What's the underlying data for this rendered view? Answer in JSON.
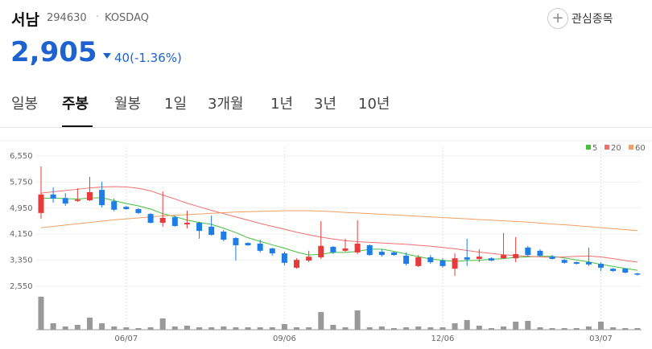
{
  "header": {
    "name": "서남",
    "code": "294630",
    "separator": "·",
    "market": "KOSDAQ",
    "price": "2,905",
    "change": "40(-1.36%)",
    "button": "관심종목"
  },
  "tabs": {
    "items": [
      "일봉",
      "주봉",
      "월봉",
      "1일",
      "3개월",
      "1년",
      "3년",
      "10년"
    ],
    "selected": "주봉"
  },
  "chart_data": {
    "type": "candlestick",
    "categories": [
      null,
      null,
      null,
      null,
      null,
      null,
      null,
      "06/07",
      null,
      null,
      null,
      null,
      null,
      null,
      null,
      null,
      null,
      null,
      null,
      null,
      "09/06",
      null,
      null,
      null,
      null,
      null,
      null,
      null,
      null,
      null,
      null,
      null,
      null,
      "12/06",
      null,
      null,
      null,
      null,
      null,
      null,
      null,
      null,
      null,
      null,
      null,
      null,
      "03/07",
      null,
      null,
      null
    ],
    "open": [
      4800,
      5370,
      5260,
      5170,
      5190,
      5510,
      5160,
      4990,
      4920,
      4770,
      4500,
      4670,
      4450,
      4500,
      4380,
      4230,
      4030,
      3880,
      3860,
      3710,
      3560,
      3120,
      3340,
      3440,
      3760,
      3640,
      3590,
      3810,
      3610,
      3590,
      3490,
      3170,
      3440,
      3340,
      3090,
      3440,
      3390,
      3410,
      3410,
      3410,
      3740,
      3640,
      3460,
      3360,
      3290,
      3290,
      3240,
      3090,
      3090,
      2945
    ],
    "high": [
      6230,
      5590,
      5410,
      5560,
      5910,
      5760,
      5240,
      5010,
      4950,
      4800,
      5460,
      4720,
      4870,
      4530,
      4720,
      4280,
      4060,
      3900,
      3980,
      3740,
      3610,
      3410,
      3640,
      4550,
      3790,
      4010,
      4580,
      3840,
      3690,
      3610,
      3590,
      3510,
      3510,
      3410,
      3560,
      4010,
      3690,
      3440,
      4180,
      4060,
      3790,
      3690,
      3510,
      3390,
      3310,
      3740,
      3290,
      3110,
      3110,
      2960
    ],
    "low": [
      4620,
      5120,
      5020,
      5140,
      5170,
      4970,
      4850,
      4900,
      4770,
      4480,
      4380,
      4380,
      4330,
      4010,
      4100,
      3930,
      3340,
      3790,
      3590,
      3490,
      3190,
      3090,
      3290,
      3390,
      3540,
      3610,
      3540,
      3490,
      3460,
      3490,
      3190,
      3140,
      3240,
      3120,
      2870,
      3170,
      3290,
      3320,
      3390,
      3290,
      3460,
      3460,
      3370,
      3240,
      3220,
      3170,
      3020,
      2990,
      2950,
      2880
    ],
    "close": [
      5370,
      5240,
      5090,
      5210,
      5440,
      5040,
      4900,
      4920,
      4800,
      4500,
      4650,
      4400,
      4500,
      4250,
      4130,
      3980,
      3810,
      3810,
      3640,
      3560,
      3270,
      3360,
      3460,
      3790,
      3590,
      3710,
      3860,
      3510,
      3510,
      3510,
      3240,
      3440,
      3290,
      3170,
      3410,
      3370,
      3460,
      3340,
      3510,
      3540,
      3510,
      3490,
      3390,
      3270,
      3240,
      3220,
      3120,
      3020,
      2970,
      2905
    ],
    "up_color": "#e83a3a",
    "down_color": "#1e7de6",
    "series": [
      {
        "name": "5",
        "color": "#45c03c",
        "values": [
          5250,
          5260,
          5240,
          5230,
          5260,
          5270,
          5180,
          5090,
          5020,
          4920,
          4780,
          4690,
          4580,
          4510,
          4450,
          4330,
          4200,
          4040,
          3930,
          3820,
          3720,
          3600,
          3510,
          3530,
          3590,
          3590,
          3620,
          3690,
          3690,
          3620,
          3540,
          3460,
          3390,
          3350,
          3310,
          3340,
          3350,
          3380,
          3400,
          3440,
          3450,
          3470,
          3470,
          3420,
          3360,
          3300,
          3220,
          3160,
          3100,
          3040
        ]
      },
      {
        "name": "20",
        "color": "#f07070",
        "values": [
          5410,
          5450,
          5490,
          5530,
          5570,
          5600,
          5610,
          5600,
          5560,
          5480,
          5350,
          5230,
          5100,
          4990,
          4880,
          4780,
          4680,
          4580,
          4480,
          4390,
          4300,
          4210,
          4130,
          4060,
          4000,
          3950,
          3920,
          3900,
          3880,
          3860,
          3840,
          3810,
          3780,
          3740,
          3700,
          3650,
          3600,
          3560,
          3520,
          3490,
          3470,
          3450,
          3440,
          3450,
          3470,
          3480,
          3450,
          3400,
          3340,
          3290
        ]
      },
      {
        "name": "60",
        "color": "#f0a060",
        "values": [
          4350,
          4390,
          4430,
          4470,
          4510,
          4550,
          4590,
          4620,
          4650,
          4680,
          4710,
          4730,
          4750,
          4770,
          4790,
          4810,
          4830,
          4840,
          4850,
          4860,
          4870,
          4870,
          4870,
          4860,
          4840,
          4820,
          4800,
          4780,
          4760,
          4740,
          4720,
          4700,
          4680,
          4660,
          4640,
          4620,
          4600,
          4580,
          4560,
          4540,
          4520,
          4490,
          4460,
          4440,
          4410,
          4380,
          4350,
          4320,
          4290,
          4260
        ]
      }
    ],
    "volume": {
      "color": "#999999",
      "values": [
        41,
        8,
        4,
        6,
        15,
        8,
        4,
        3,
        2,
        3,
        14,
        4,
        5,
        3,
        3,
        4,
        3,
        3,
        3,
        3,
        7,
        3,
        3,
        22,
        6,
        3,
        24,
        3,
        4,
        2,
        3,
        4,
        3,
        3,
        8,
        12,
        5,
        2,
        4,
        10,
        11,
        3,
        2,
        2,
        2,
        4,
        10,
        3,
        2,
        2
      ]
    },
    "ylim": [
      2550,
      6550
    ],
    "yticks": [
      {
        "value": 6550,
        "label": "6,550"
      },
      {
        "value": 5750,
        "label": "5,750"
      },
      {
        "value": 4950,
        "label": "4,950"
      },
      {
        "value": 4150,
        "label": "4,150"
      },
      {
        "value": 3350,
        "label": "3,350"
      },
      {
        "value": 2550,
        "label": "2,550"
      }
    ],
    "grid": true,
    "legend": "top-right"
  }
}
